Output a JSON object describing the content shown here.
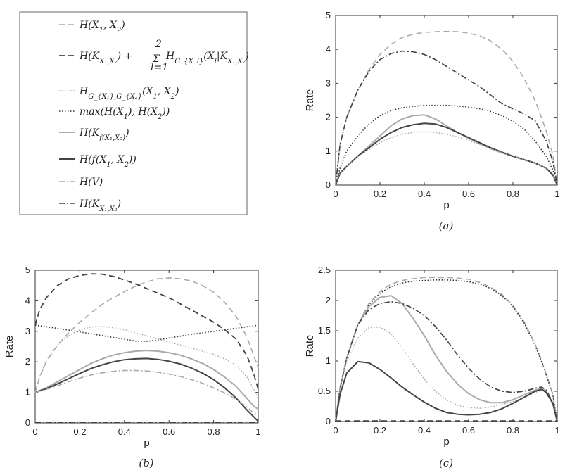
{
  "legend": {
    "entries": [
      {
        "key": "h_x1x2",
        "label": "H(X₁, X₂)",
        "color": "#aaaaaa",
        "dash": "8,5",
        "width": 1.6
      },
      {
        "key": "h_k_sum",
        "label": "H(K_{X₁,X₂}) + Σ_{l=1}^{2} H_{G_{X_l}}(X_l|K_{X₁,X₂})",
        "color": "#444444",
        "dash": "8,5",
        "width": 1.8
      },
      {
        "key": "hg_joint",
        "label": "H_{G_{X₁},G_{X₂}}(X₁, X₂)",
        "color": "#aaaaaa",
        "dash": "1.5,2.5",
        "width": 1.5
      },
      {
        "key": "max_h",
        "label": "max(H(X₁), H(X₂))",
        "color": "#333333",
        "dash": "1.5,2.5",
        "width": 1.6
      },
      {
        "key": "h_kf",
        "label": "H(K_{f(X₁,X₂)})",
        "color": "#aaaaaa",
        "dash": "",
        "width": 2
      },
      {
        "key": "h_f",
        "label": "H(f(X₁, X₂))",
        "color": "#444444",
        "dash": "",
        "width": 2
      },
      {
        "key": "h_v",
        "label": "H(V)",
        "color": "#aaaaaa",
        "dash": "8,3,2,3",
        "width": 1.6
      },
      {
        "key": "h_k",
        "label": "H(K_{X₁,X₂})",
        "color": "#444444",
        "dash": "8,3,2,3",
        "width": 1.6
      }
    ],
    "display": {
      "h_x1x2": [
        "H(X",
        "1",
        ", X",
        "2",
        ")"
      ],
      "hg_joint": [
        "H",
        "G_{X₁},G_{X₂}",
        "(X",
        "1",
        ", X",
        "2",
        ")"
      ],
      "max_h": [
        "max(H(X",
        "1",
        "), H(X",
        "2",
        "))"
      ],
      "h_kf": [
        "H(K",
        "f(X₁,X₂)",
        ")"
      ],
      "h_f": [
        "H(f(X",
        "1",
        ", X",
        "2",
        "))"
      ],
      "h_v": [
        "H(V)"
      ],
      "h_k": [
        "H(K",
        "X₁,X₂",
        ")"
      ]
    }
  },
  "chart_data": [
    {
      "id": "a",
      "type": "line",
      "caption": "(a)",
      "xlabel": "p",
      "ylabel": "Rate",
      "xlim": [
        0,
        1
      ],
      "ylim": [
        0,
        5
      ],
      "xticks": [
        0,
        0.2,
        0.4,
        0.6,
        0.8,
        1
      ],
      "yticks": [
        0,
        1,
        2,
        3,
        4,
        5
      ],
      "x": [
        0,
        0.02,
        0.05,
        0.1,
        0.15,
        0.2,
        0.25,
        0.3,
        0.35,
        0.4,
        0.45,
        0.5,
        0.55,
        0.6,
        0.65,
        0.7,
        0.75,
        0.8,
        0.85,
        0.9,
        0.95,
        0.98,
        1
      ],
      "series": [
        {
          "key": "h_x1x2",
          "values": [
            0,
            1.2,
            2.0,
            2.8,
            3.4,
            3.85,
            4.15,
            4.35,
            4.45,
            4.5,
            4.52,
            4.53,
            4.52,
            4.48,
            4.4,
            4.25,
            4.0,
            3.65,
            3.15,
            2.5,
            1.6,
            0.9,
            0
          ]
        },
        {
          "key": "h_v",
          "values": [
            0,
            1.2,
            2.0,
            2.8,
            3.35,
            3.7,
            3.88,
            3.95,
            3.93,
            3.85,
            3.7,
            3.5,
            3.3,
            3.1,
            2.9,
            2.65,
            2.4,
            2.25,
            2.1,
            1.9,
            1.3,
            0.7,
            0
          ]
        },
        {
          "key": "h_k",
          "values": [
            0,
            1.2,
            2.0,
            2.8,
            3.35,
            3.7,
            3.88,
            3.95,
            3.93,
            3.85,
            3.7,
            3.5,
            3.3,
            3.1,
            2.9,
            2.65,
            2.4,
            2.25,
            2.1,
            1.9,
            1.3,
            0.7,
            0
          ]
        },
        {
          "key": "max_h",
          "values": [
            0,
            0.5,
            1.0,
            1.45,
            1.8,
            2.05,
            2.2,
            2.28,
            2.32,
            2.35,
            2.35,
            2.35,
            2.33,
            2.3,
            2.25,
            2.17,
            2.05,
            1.88,
            1.65,
            1.3,
            0.85,
            0.45,
            0
          ]
        },
        {
          "key": "h_kf",
          "values": [
            0,
            0.35,
            0.55,
            0.85,
            1.15,
            1.45,
            1.75,
            1.95,
            2.05,
            2.07,
            1.95,
            1.75,
            1.55,
            1.38,
            1.22,
            1.07,
            0.95,
            0.85,
            0.75,
            0.65,
            0.5,
            0.3,
            0
          ]
        },
        {
          "key": "h_f",
          "values": [
            0,
            0.35,
            0.55,
            0.85,
            1.1,
            1.35,
            1.55,
            1.7,
            1.78,
            1.82,
            1.8,
            1.7,
            1.55,
            1.4,
            1.25,
            1.1,
            0.97,
            0.85,
            0.75,
            0.65,
            0.5,
            0.3,
            0
          ]
        },
        {
          "key": "hg_joint",
          "values": [
            0,
            0.35,
            0.55,
            0.85,
            1.05,
            1.25,
            1.4,
            1.5,
            1.55,
            1.57,
            1.55,
            1.5,
            1.42,
            1.32,
            1.2,
            1.08,
            0.96,
            0.85,
            0.75,
            0.65,
            0.5,
            0.3,
            0
          ]
        }
      ]
    },
    {
      "id": "b",
      "type": "line",
      "caption": "(b)",
      "xlabel": "p",
      "ylabel": "Rate",
      "xlim": [
        0,
        1
      ],
      "ylim": [
        0,
        5
      ],
      "xticks": [
        0,
        0.2,
        0.4,
        0.6,
        0.8,
        1
      ],
      "yticks": [
        0,
        1,
        2,
        3,
        4,
        5
      ],
      "x": [
        0,
        0.02,
        0.05,
        0.1,
        0.15,
        0.2,
        0.25,
        0.3,
        0.35,
        0.4,
        0.45,
        0.5,
        0.55,
        0.6,
        0.65,
        0.7,
        0.75,
        0.8,
        0.85,
        0.9,
        0.95,
        0.98,
        1
      ],
      "series": [
        {
          "key": "h_k_sum",
          "values": [
            3.2,
            3.7,
            4.1,
            4.5,
            4.72,
            4.83,
            4.88,
            4.87,
            4.8,
            4.68,
            4.55,
            4.4,
            4.25,
            4.1,
            3.9,
            3.7,
            3.5,
            3.3,
            3.05,
            2.75,
            2.2,
            1.6,
            1.1
          ]
        },
        {
          "key": "h_x1x2",
          "values": [
            1.0,
            1.5,
            2.0,
            2.55,
            2.95,
            3.3,
            3.6,
            3.88,
            4.1,
            4.3,
            4.48,
            4.62,
            4.72,
            4.75,
            4.72,
            4.65,
            4.5,
            4.28,
            3.95,
            3.5,
            2.8,
            2.2,
            1.8
          ]
        },
        {
          "key": "max_h",
          "values": [
            3.2,
            3.18,
            3.15,
            3.1,
            3.04,
            2.98,
            2.92,
            2.86,
            2.8,
            2.74,
            2.68,
            2.67,
            2.72,
            2.78,
            2.84,
            2.9,
            2.95,
            3.0,
            3.05,
            3.1,
            3.15,
            3.18,
            3.2
          ]
        },
        {
          "key": "hg_joint",
          "values": [
            1.0,
            1.5,
            2.05,
            2.55,
            2.85,
            3.05,
            3.14,
            3.16,
            3.12,
            3.05,
            2.95,
            2.85,
            2.75,
            2.65,
            2.55,
            2.45,
            2.35,
            2.25,
            2.1,
            1.9,
            1.5,
            1.1,
            0.8
          ]
        },
        {
          "key": "h_kf",
          "values": [
            1.0,
            1.06,
            1.15,
            1.35,
            1.55,
            1.75,
            1.95,
            2.1,
            2.22,
            2.3,
            2.35,
            2.37,
            2.35,
            2.3,
            2.22,
            2.1,
            1.95,
            1.75,
            1.5,
            1.2,
            0.8,
            0.55,
            0.45
          ]
        },
        {
          "key": "h_f",
          "values": [
            1.0,
            1.05,
            1.12,
            1.28,
            1.45,
            1.62,
            1.78,
            1.9,
            2.0,
            2.07,
            2.1,
            2.11,
            2.08,
            2.02,
            1.93,
            1.8,
            1.63,
            1.42,
            1.15,
            0.82,
            0.42,
            0.2,
            0.05
          ]
        },
        {
          "key": "h_v",
          "values": [
            1.0,
            1.04,
            1.1,
            1.22,
            1.35,
            1.47,
            1.57,
            1.64,
            1.69,
            1.72,
            1.72,
            1.7,
            1.66,
            1.6,
            1.52,
            1.42,
            1.3,
            1.15,
            0.98,
            0.78,
            0.52,
            0.32,
            0.25
          ]
        },
        {
          "key": "h_k",
          "values": [
            0.02,
            0.02,
            0.02,
            0.02,
            0.02,
            0.02,
            0.02,
            0.02,
            0.02,
            0.02,
            0.02,
            0.02,
            0.02,
            0.02,
            0.02,
            0.02,
            0.02,
            0.02,
            0.02,
            0.02,
            0.02,
            0.02,
            0.02
          ]
        }
      ]
    },
    {
      "id": "c",
      "type": "line",
      "caption": "(c)",
      "xlabel": "p",
      "ylabel": "Rate",
      "xlim": [
        0,
        1
      ],
      "ylim": [
        0,
        2.5
      ],
      "xticks": [
        0,
        0.2,
        0.4,
        0.6,
        0.8,
        1
      ],
      "yticks": [
        0,
        0.5,
        1,
        1.5,
        2,
        2.5
      ],
      "x": [
        0,
        0.02,
        0.05,
        0.1,
        0.15,
        0.2,
        0.25,
        0.3,
        0.35,
        0.4,
        0.45,
        0.5,
        0.55,
        0.6,
        0.65,
        0.7,
        0.75,
        0.8,
        0.85,
        0.9,
        0.93,
        0.95,
        0.98,
        1
      ],
      "series": [
        {
          "key": "h_x1x2",
          "values": [
            0,
            0.55,
            1.05,
            1.6,
            1.95,
            2.15,
            2.27,
            2.33,
            2.36,
            2.38,
            2.38,
            2.38,
            2.37,
            2.35,
            2.3,
            2.22,
            2.1,
            1.92,
            1.65,
            1.28,
            1.0,
            0.78,
            0.45,
            0
          ]
        },
        {
          "key": "max_h",
          "values": [
            0,
            0.55,
            1.05,
            1.6,
            1.93,
            2.12,
            2.23,
            2.29,
            2.32,
            2.33,
            2.34,
            2.34,
            2.33,
            2.31,
            2.27,
            2.2,
            2.08,
            1.9,
            1.63,
            1.26,
            0.98,
            0.77,
            0.44,
            0
          ]
        },
        {
          "key": "h_kf",
          "values": [
            0,
            0.55,
            1.05,
            1.6,
            1.9,
            2.05,
            2.08,
            1.95,
            1.7,
            1.42,
            1.1,
            0.83,
            0.62,
            0.46,
            0.36,
            0.31,
            0.31,
            0.36,
            0.44,
            0.52,
            0.55,
            0.5,
            0.3,
            0
          ]
        },
        {
          "key": "h_v",
          "values": [
            0,
            0.55,
            1.05,
            1.6,
            1.85,
            1.95,
            1.98,
            1.95,
            1.87,
            1.75,
            1.57,
            1.35,
            1.1,
            0.88,
            0.7,
            0.57,
            0.5,
            0.48,
            0.5,
            0.55,
            0.57,
            0.52,
            0.32,
            0
          ]
        },
        {
          "key": "h_k",
          "values": [
            0,
            0.55,
            1.05,
            1.6,
            1.85,
            1.95,
            1.98,
            1.95,
            1.87,
            1.75,
            1.57,
            1.35,
            1.1,
            0.88,
            0.7,
            0.57,
            0.5,
            0.48,
            0.5,
            0.55,
            0.57,
            0.52,
            0.32,
            0
          ]
        },
        {
          "key": "hg_joint",
          "values": [
            0,
            0.55,
            1.0,
            1.38,
            1.55,
            1.56,
            1.45,
            1.22,
            0.95,
            0.7,
            0.5,
            0.36,
            0.27,
            0.23,
            0.22,
            0.24,
            0.28,
            0.33,
            0.4,
            0.48,
            0.52,
            0.48,
            0.3,
            0
          ]
        },
        {
          "key": "h_f",
          "values": [
            0,
            0.45,
            0.8,
            0.99,
            0.97,
            0.86,
            0.72,
            0.57,
            0.44,
            0.32,
            0.22,
            0.15,
            0.12,
            0.11,
            0.12,
            0.15,
            0.21,
            0.3,
            0.4,
            0.5,
            0.53,
            0.48,
            0.3,
            0
          ]
        },
        {
          "key": "h_k_sum",
          "values": [
            0.01,
            0.01,
            0.01,
            0.01,
            0.01,
            0.01,
            0.01,
            0.01,
            0.01,
            0.01,
            0.01,
            0.01,
            0.01,
            0.01,
            0.01,
            0.01,
            0.01,
            0.01,
            0.01,
            0.01,
            0.01,
            0.01,
            0.01,
            0.01
          ]
        }
      ]
    }
  ]
}
